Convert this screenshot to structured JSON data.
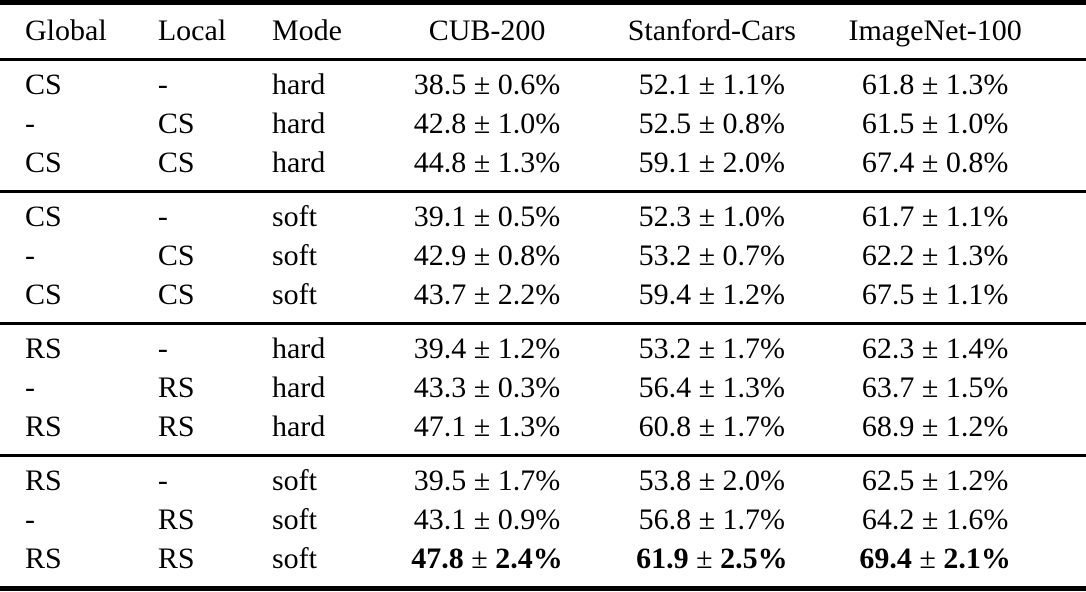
{
  "page": {
    "background_color": "#ffffff",
    "text_color": "#000000"
  },
  "table": {
    "columns": [
      {
        "key": "global",
        "label": "Global",
        "align": "left"
      },
      {
        "key": "local",
        "label": "Local",
        "align": "left"
      },
      {
        "key": "mode",
        "label": "Mode",
        "align": "left"
      },
      {
        "key": "cub200",
        "label": "CUB-200",
        "align": "center"
      },
      {
        "key": "stanford_cars",
        "label": "Stanford-Cars",
        "align": "center"
      },
      {
        "key": "imagenet100",
        "label": "ImageNet-100",
        "align": "center"
      }
    ],
    "value_separator": " ± ",
    "groups": [
      {
        "rows": [
          {
            "global": "CS",
            "local": "-",
            "mode": "hard",
            "cub200": "38.5 ± 0.6%",
            "stanford_cars": "52.1 ± 1.1%",
            "imagenet100": "61.8 ± 1.3%",
            "bold_results": false
          },
          {
            "global": "-",
            "local": "CS",
            "mode": "hard",
            "cub200": "42.8 ± 1.0%",
            "stanford_cars": "52.5 ± 0.8%",
            "imagenet100": "61.5 ± 1.0%",
            "bold_results": false
          },
          {
            "global": "CS",
            "local": "CS",
            "mode": "hard",
            "cub200": "44.8 ± 1.3%",
            "stanford_cars": "59.1 ± 2.0%",
            "imagenet100": "67.4 ± 0.8%",
            "bold_results": false
          }
        ]
      },
      {
        "rows": [
          {
            "global": "CS",
            "local": "-",
            "mode": "soft",
            "cub200": "39.1 ± 0.5%",
            "stanford_cars": "52.3 ± 1.0%",
            "imagenet100": "61.7 ± 1.1%",
            "bold_results": false
          },
          {
            "global": "-",
            "local": "CS",
            "mode": "soft",
            "cub200": "42.9 ± 0.8%",
            "stanford_cars": "53.2 ± 0.7%",
            "imagenet100": "62.2 ± 1.3%",
            "bold_results": false
          },
          {
            "global": "CS",
            "local": "CS",
            "mode": "soft",
            "cub200": "43.7 ± 2.2%",
            "stanford_cars": "59.4 ± 1.2%",
            "imagenet100": "67.5 ± 1.1%",
            "bold_results": false
          }
        ]
      },
      {
        "rows": [
          {
            "global": "RS",
            "local": "-",
            "mode": "hard",
            "cub200": "39.4 ± 1.2%",
            "stanford_cars": "53.2 ± 1.7%",
            "imagenet100": "62.3 ± 1.4%",
            "bold_results": false
          },
          {
            "global": "-",
            "local": "RS",
            "mode": "hard",
            "cub200": "43.3 ± 0.3%",
            "stanford_cars": "56.4 ± 1.3%",
            "imagenet100": "63.7 ± 1.5%",
            "bold_results": false
          },
          {
            "global": "RS",
            "local": "RS",
            "mode": "hard",
            "cub200": "47.1 ± 1.3%",
            "stanford_cars": "60.8 ± 1.7%",
            "imagenet100": "68.9 ± 1.2%",
            "bold_results": false
          }
        ]
      },
      {
        "rows": [
          {
            "global": "RS",
            "local": "-",
            "mode": "soft",
            "cub200": "39.5 ± 1.7%",
            "stanford_cars": "53.8 ± 2.0%",
            "imagenet100": "62.5 ± 1.2%",
            "bold_results": false
          },
          {
            "global": "-",
            "local": "RS",
            "mode": "soft",
            "cub200": "43.1 ± 0.9%",
            "stanford_cars": "56.8 ± 1.7%",
            "imagenet100": "64.2 ± 1.6%",
            "bold_results": false
          },
          {
            "global": "RS",
            "local": "RS",
            "mode": "soft",
            "cub200": "47.8 ± 2.4%",
            "stanford_cars": "61.9 ± 2.5%",
            "imagenet100": "69.4 ± 2.1%",
            "bold_results": true
          }
        ]
      }
    ]
  }
}
